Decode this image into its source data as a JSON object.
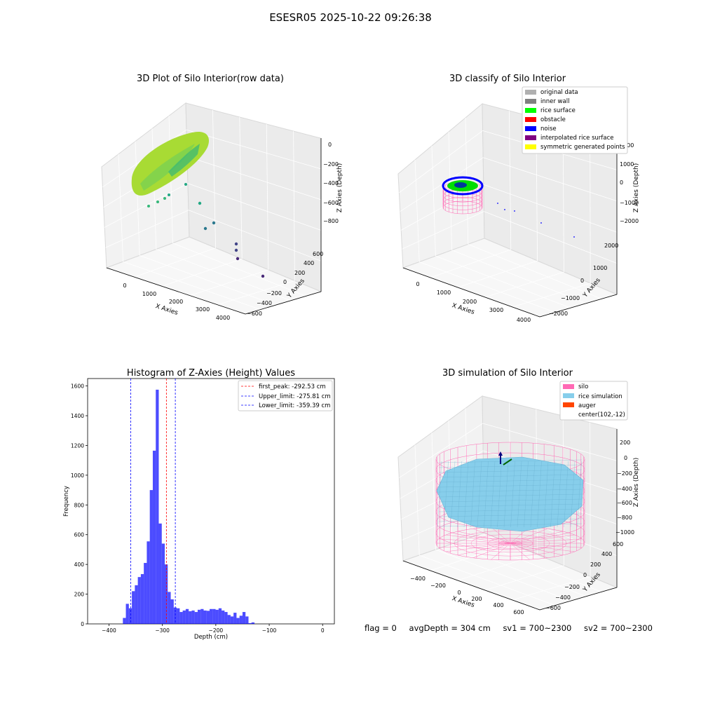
{
  "suptitle": "ESESR05 2025-10-22 09:26:38",
  "panels": {
    "raw": {
      "title": "3D Plot of Silo Interior(row data)",
      "xlabel": "X Axies",
      "ylabel": "Y Axies",
      "zlabel": "Z Axies (Depth)",
      "xticks": [
        "0",
        "1000",
        "2000",
        "3000",
        "4000"
      ],
      "yticks": [
        "600",
        "400",
        "200",
        "0",
        "−200",
        "−400",
        "−600"
      ],
      "zticks": [
        "0",
        "−200",
        "−400",
        "−600",
        "−800"
      ],
      "point_colors": [
        "#a8db34",
        "#7ad151",
        "#35b779",
        "#22a884",
        "#2a788e",
        "#414487",
        "#482878"
      ]
    },
    "classify": {
      "title": "3D classify of Silo Interior",
      "xlabel": "X Axies",
      "ylabel": "Y Axies",
      "zlabel": "Z Axies (Depth)",
      "xticks": [
        "0",
        "1000",
        "2000",
        "3000",
        "4000"
      ],
      "yticks": [
        "2000",
        "1000",
        "0",
        "−1000",
        "−2000"
      ],
      "zticks": [
        "2000",
        "1000",
        "0",
        "−1000",
        "−2000"
      ],
      "legend": [
        {
          "label": "original data",
          "color": "#b0b0b0"
        },
        {
          "label": "inner wall",
          "color": "#808080"
        },
        {
          "label": "rice surface",
          "color": "#00ff00"
        },
        {
          "label": "obstacle",
          "color": "#ff0000"
        },
        {
          "label": "noise",
          "color": "#0000ff"
        },
        {
          "label": "interpolated rice surface",
          "color": "#800080"
        },
        {
          "label": "symmetric generated points",
          "color": "#ffff00"
        }
      ]
    },
    "simulation": {
      "title": "3D simulation of Silo Interior",
      "xlabel": "X Axies",
      "ylabel": "Y Axies",
      "zlabel": "Z Axies (Depth)",
      "xticks": [
        "−400",
        "−200",
        "0",
        "200",
        "400",
        "600"
      ],
      "yticks": [
        "600",
        "400",
        "200",
        "0",
        "−200",
        "−400",
        "−600"
      ],
      "zticks": [
        "200",
        "0",
        "−200",
        "−400",
        "−600",
        "−800",
        "−1000"
      ],
      "legend": [
        {
          "label": "silo",
          "color": "#ff69b4"
        },
        {
          "label": "rice simulation",
          "color": "#87ceeb"
        },
        {
          "label": "auger",
          "color": "#ff4500"
        },
        {
          "label": "center(102,-12)",
          "color": "#ffffff"
        }
      ]
    }
  },
  "chart_data": {
    "type": "bar",
    "title": "Histogram of Z-Axies (Height) Values",
    "xlabel": "Depth (cm)",
    "ylabel": "Frequency",
    "xlim": [
      -440,
      22
    ],
    "ylim": [
      0,
      1650
    ],
    "xticks": [
      -400,
      -300,
      -200,
      -100,
      0
    ],
    "yticks": [
      0,
      200,
      400,
      600,
      800,
      1000,
      1200,
      1400,
      1600
    ],
    "bar_color": "#0000ff",
    "bin_start": -374,
    "bin_width": 5.6,
    "values": [
      40,
      135,
      105,
      220,
      260,
      315,
      335,
      410,
      555,
      900,
      1165,
      1575,
      675,
      540,
      400,
      215,
      165,
      110,
      105,
      80,
      90,
      100,
      85,
      90,
      80,
      95,
      100,
      90,
      88,
      100,
      100,
      95,
      105,
      90,
      80,
      60,
      50,
      75,
      40,
      55,
      80,
      50,
      5,
      10
    ],
    "lines": [
      {
        "label": "first_peak: -292.53 cm",
        "value": -292.53,
        "color": "#ff0000"
      },
      {
        "label": "Upper_limit: -275.81 cm",
        "value": -275.81,
        "color": "#0000ff"
      },
      {
        "label": "Lower_limit: -359.39 cm",
        "value": -359.39,
        "color": "#0000ff"
      }
    ],
    "legend_position": "upper-right"
  },
  "status": {
    "flag": "flag = 0",
    "avg_depth": "avgDepth = 304 cm",
    "sv1": "sv1 = 700~2300",
    "sv2": "sv2 = 700~2300"
  }
}
